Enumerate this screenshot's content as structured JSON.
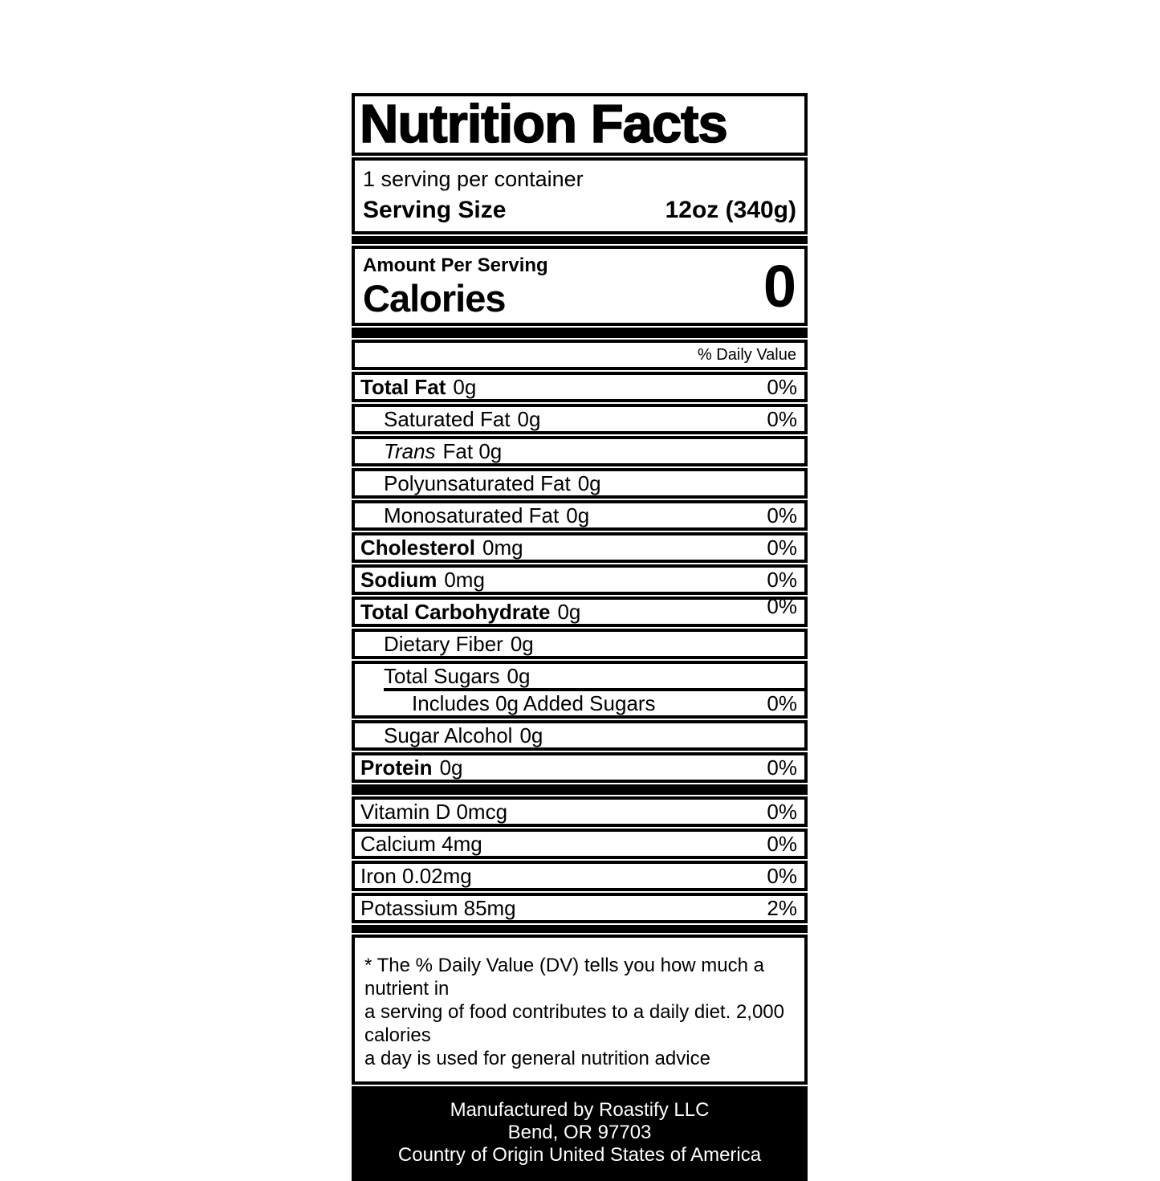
{
  "colors": {
    "ink": "#000000",
    "paper": "#ffffff"
  },
  "label": {
    "title": "Nutrition Facts",
    "servings_per_container": "1 serving per container",
    "serving_size_label": "Serving Size",
    "serving_size_value": "12oz (340g)",
    "amount_per_serving": "Amount Per Serving",
    "calories_label": "Calories",
    "calories_value": "0",
    "daily_value_header": "% Daily Value",
    "rows": [
      {
        "name": "Total Fat",
        "amount": "0g",
        "dv": "0%"
      },
      {
        "name": "Saturated Fat",
        "amount": "0g",
        "dv": "0%"
      },
      {
        "name": "Trans",
        "amount": "Fat 0g",
        "dv": ""
      },
      {
        "name": "Polyunsaturated Fat",
        "amount": "0g",
        "dv": ""
      },
      {
        "name": "Monosaturated Fat",
        "amount": "0g",
        "dv": "0%"
      },
      {
        "name": "Cholesterol",
        "amount": "0mg",
        "dv": "0%"
      },
      {
        "name": "Sodium",
        "amount": "0mg",
        "dv": "0%"
      },
      {
        "name": "Total Carbohydrate",
        "amount": "0g",
        "dv": "0%"
      },
      {
        "name": "Dietary Fiber",
        "amount": "0g",
        "dv": ""
      },
      {
        "name": "Total Sugars",
        "amount": "0g",
        "dv": ""
      },
      {
        "name": "Includes 0g Added Sugars",
        "amount": "",
        "dv": "0%"
      },
      {
        "name": "Sugar Alcohol",
        "amount": "0g",
        "dv": ""
      },
      {
        "name": "Protein",
        "amount": "0g",
        "dv": "0%"
      }
    ],
    "vitamins": [
      {
        "name": "Vitamin D 0mcg",
        "dv": "0%"
      },
      {
        "name": "Calcium 4mg",
        "dv": "0%"
      },
      {
        "name": "Iron 0.02mg",
        "dv": "0%"
      },
      {
        "name": "Potassium 85mg",
        "dv": "2%"
      }
    ],
    "footnote_lines": [
      "* The % Daily Value (DV) tells you how much a nutrient in",
      "a serving of food contributes to a daily diet. 2,000 calories",
      "a day is used for general nutrition advice"
    ],
    "footer_lines": [
      "Manufactured by Roastify LLC",
      "Bend, OR 97703",
      "Country of Origin United States of America"
    ]
  }
}
